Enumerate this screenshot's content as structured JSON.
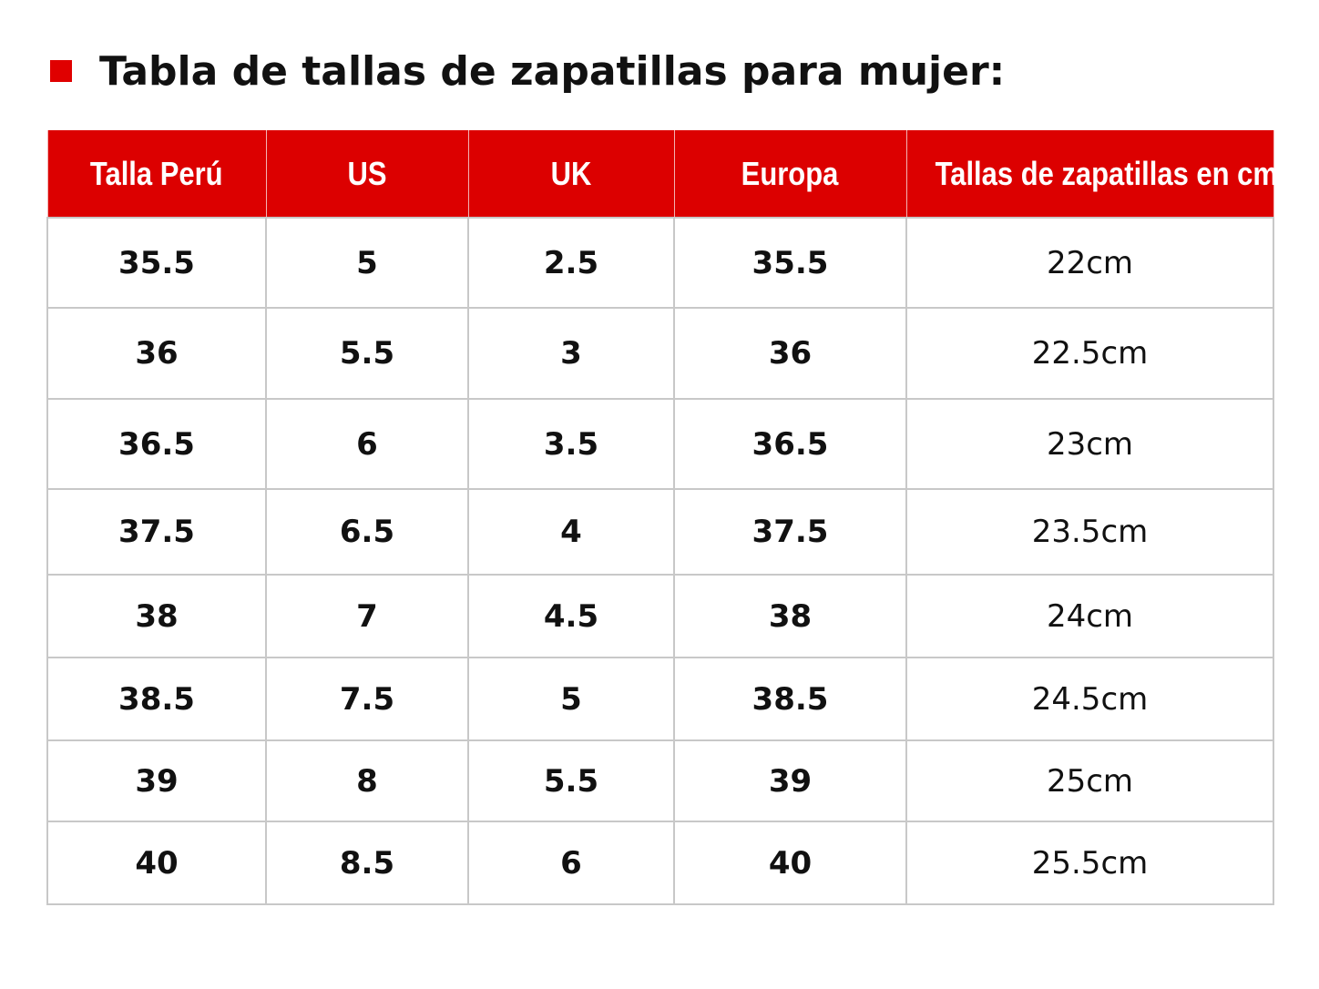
{
  "title": "Tabla de tallas de zapatillas para mujer:",
  "colors": {
    "accent": "#dc0000",
    "header_text": "#ffffff",
    "grid": "#c8c8c8"
  },
  "table": {
    "headers": [
      "Talla Perú",
      "US",
      "UK",
      "Europa",
      "Tallas de zapatillas en cm"
    ],
    "rows": [
      [
        "35.5",
        "5",
        "2.5",
        "35.5",
        "22cm"
      ],
      [
        "36",
        "5.5",
        "3",
        "36",
        "22.5cm"
      ],
      [
        "36.5",
        "6",
        "3.5",
        "36.5",
        "23cm"
      ],
      [
        "37.5",
        "6.5",
        "4",
        "37.5",
        "23.5cm"
      ],
      [
        "38",
        "7",
        "4.5",
        "38",
        "24cm"
      ],
      [
        "38.5",
        "7.5",
        "5",
        "38.5",
        "24.5cm"
      ],
      [
        "39",
        "8",
        "5.5",
        "39",
        "25cm"
      ],
      [
        "40",
        "8.5",
        "6",
        "40",
        "25.5cm"
      ]
    ]
  }
}
